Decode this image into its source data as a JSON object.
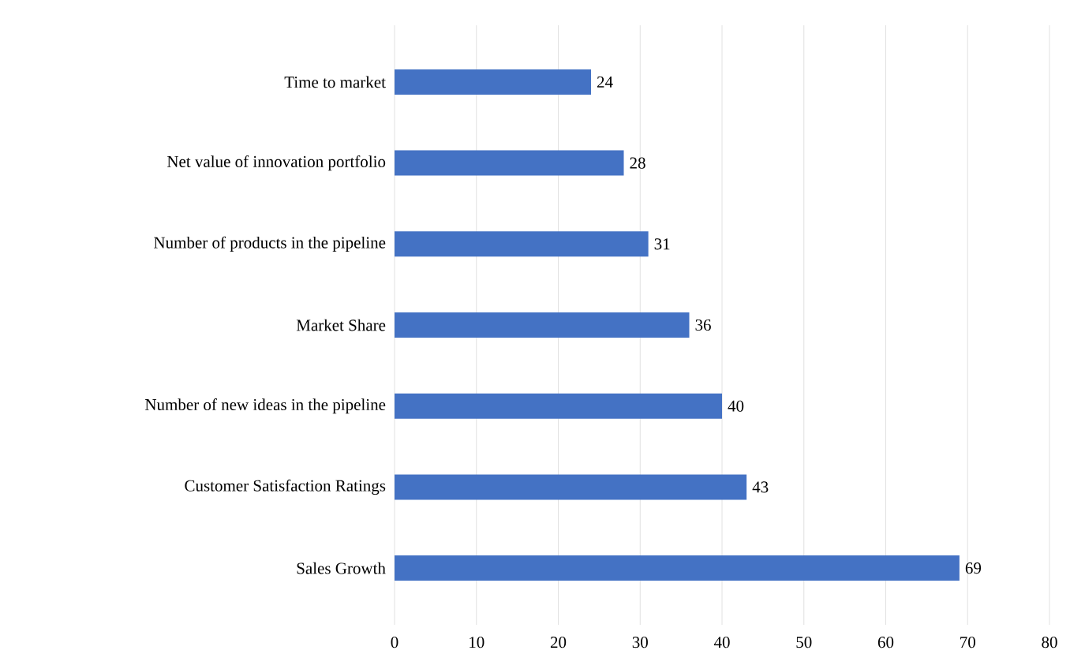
{
  "chart_data": {
    "type": "bar",
    "orientation": "horizontal",
    "categories": [
      "Time to market",
      "Net value of innovation portfolio",
      "Number of products in the pipeline",
      "Market Share",
      "Number of new ideas in the pipeline",
      "Customer Satisfaction Ratings",
      "Sales Growth"
    ],
    "values": [
      24,
      28,
      31,
      36,
      40,
      43,
      69
    ],
    "color": "#4472c4",
    "xlim": [
      0,
      80
    ],
    "xticks": [
      0,
      10,
      20,
      30,
      40,
      50,
      60,
      70,
      80
    ],
    "grid": "x",
    "data_labels": true
  }
}
